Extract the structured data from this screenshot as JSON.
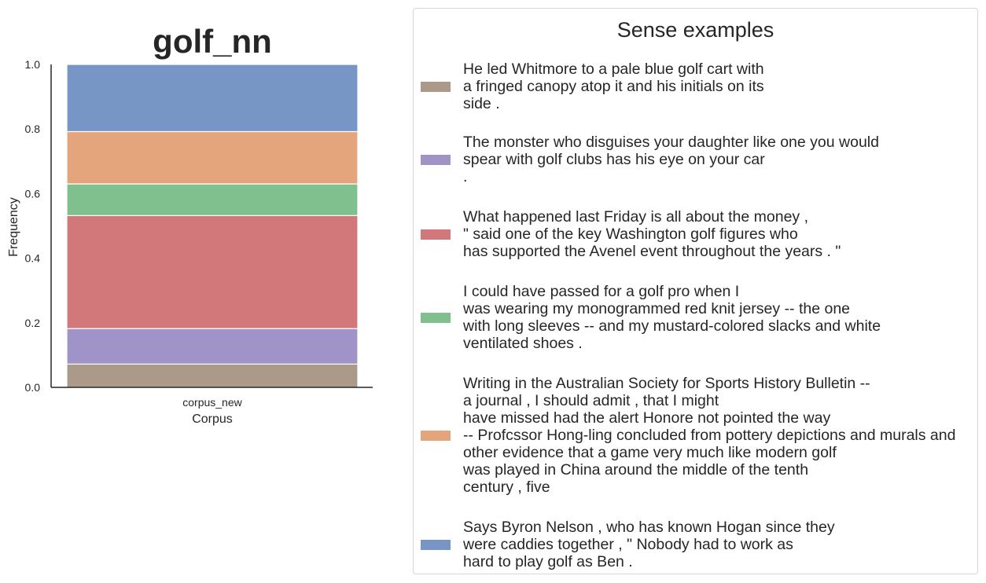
{
  "chart_data": {
    "type": "bar",
    "stacked": true,
    "normalized": true,
    "title": "golf_nn",
    "xlabel": "Corpus",
    "ylabel": "Frequency",
    "categories": [
      "corpus_new"
    ],
    "ylim": [
      0,
      1
    ],
    "yticks": [
      "0.0",
      "0.2",
      "0.4",
      "0.6",
      "0.8",
      "1.0"
    ],
    "grid": false,
    "legend_placement": "right",
    "series": [
      {
        "name": "He led Whitmore to a pale blue golf cart with\na fringed canopy atop it and his initials on its\nside .",
        "color": "#ab9a8a",
        "values": [
          0.072
        ]
      },
      {
        "name": "The monster who disguises your daughter like one you would\nspear with golf clubs has his eye on your car\n.",
        "color": "#a093c8",
        "values": [
          0.11
        ]
      },
      {
        "name": "What happened last Friday is all about the money ,\n\" said one of the key Washington golf figures who\nhas supported the Avenel event throughout the years . \"",
        "color": "#d2787a",
        "values": [
          0.35
        ]
      },
      {
        "name": "I could have passed for a golf pro when I\nwas wearing my monogrammed red knit jersey -- the one\nwith long sleeves -- and my mustard-colored slacks and white\nventilated shoes .",
        "color": "#80bf8e",
        "values": [
          0.098
        ]
      },
      {
        "name": "Writing in the Australian Society for Sports History Bulletin --\na journal , I should admit , that I might\nhave missed had the alert Honore not pointed the way\n-- Profcssor Hong-ling concluded from pottery depictions and murals and\nother evidence that a game very much like modern golf\nwas played in China around the middle of the tenth\ncentury , five",
        "color": "#e4a47c",
        "values": [
          0.162
        ]
      },
      {
        "name": "Says Byron Nelson , who has known Hogan since they\nwere caddies together , \" Nobody had to work as\nhard to play golf as Ben .",
        "color": "#7896c5",
        "values": [
          0.208
        ]
      }
    ]
  },
  "legend": {
    "title": "Sense examples"
  }
}
